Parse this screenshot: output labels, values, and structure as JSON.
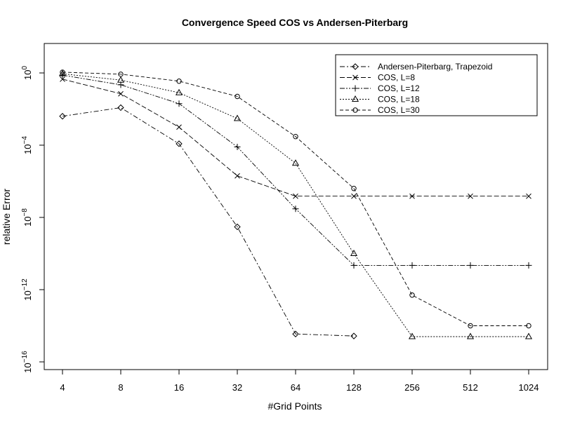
{
  "chart_data": {
    "type": "line",
    "title": "Convergence Speed COS vs Andersen-Piterbarg",
    "xlabel": "#Grid Points",
    "ylabel": "relative Error",
    "x_scale": "log2",
    "y_scale": "log10",
    "categories": [
      "4",
      "8",
      "16",
      "32",
      "64",
      "128",
      "256",
      "512",
      "1024"
    ],
    "x": [
      4,
      8,
      16,
      32,
      64,
      128,
      256,
      512,
      1024
    ],
    "yticks": [
      {
        "base": "10",
        "exp": "0",
        "value": 1
      },
      {
        "base": "10",
        "exp": "−4",
        "value": 0.0001
      },
      {
        "base": "10",
        "exp": "−8",
        "value": 1e-08
      },
      {
        "base": "10",
        "exp": "−12",
        "value": 1e-12
      },
      {
        "base": "10",
        "exp": "−16",
        "value": 1e-16
      }
    ],
    "ylim": [
      2e-17,
      30.0
    ],
    "grid": false,
    "legend_position": "top-right",
    "series": [
      {
        "name": "Andersen-Piterbarg, Trapezoid",
        "marker": "diamond",
        "dash": "7 3 2 3",
        "values": [
          0.004,
          0.012,
          0.00012,
          3e-09,
          3.5e-15,
          2.7e-15,
          null,
          null,
          null
        ]
      },
      {
        "name": "COS, L=8",
        "marker": "x",
        "dash": "7 3",
        "values": [
          0.45,
          0.07,
          0.001,
          2e-06,
          1.5e-07,
          1.5e-07,
          1.5e-07,
          1.5e-07,
          1.5e-07
        ]
      },
      {
        "name": "COS, L=12",
        "marker": "plus",
        "dash": "7 2 2 2 2 2",
        "values": [
          0.75,
          0.22,
          0.02,
          8e-05,
          3e-08,
          2.2e-11,
          2.2e-11,
          2.2e-11,
          2.2e-11
        ]
      },
      {
        "name": "COS, L=18",
        "marker": "triangle",
        "dash": "2 2",
        "values": [
          0.9,
          0.4,
          0.08,
          0.003,
          1e-05,
          1e-10,
          2.5e-15,
          2.5e-15,
          2.5e-15
        ]
      },
      {
        "name": "COS, L=30",
        "marker": "circle",
        "dash": "5 3",
        "values": [
          1.1,
          0.85,
          0.35,
          0.05,
          0.0003,
          4e-07,
          5e-13,
          1e-14,
          1e-14
        ]
      }
    ]
  }
}
